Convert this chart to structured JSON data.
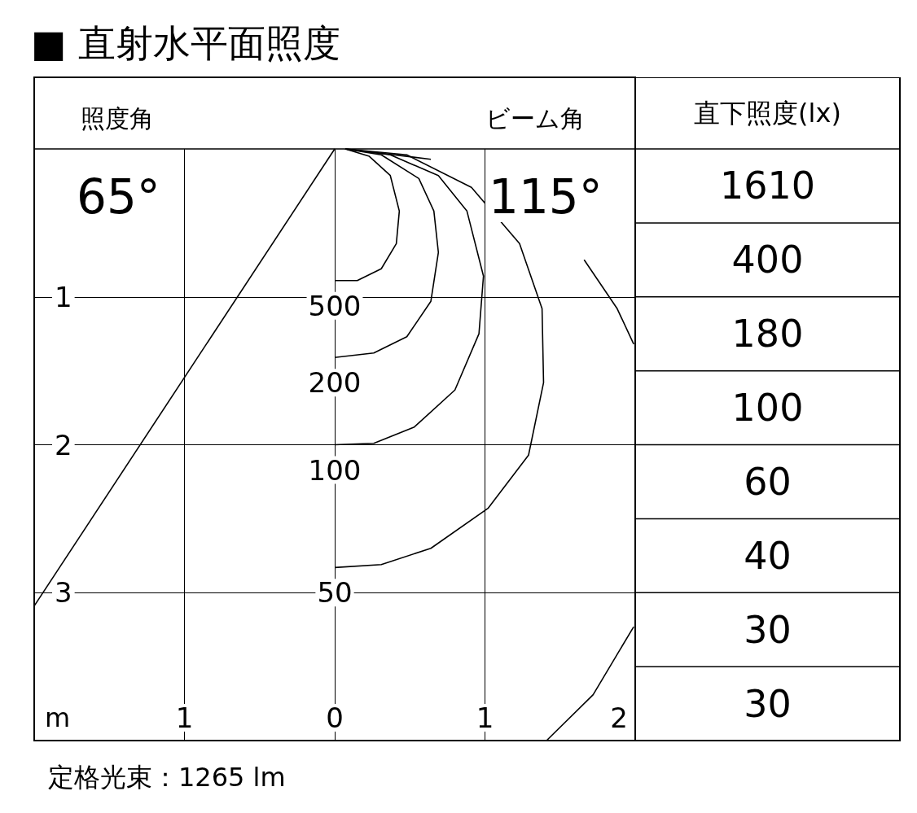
{
  "chart_data": [
    {
      "type": "line",
      "title": "■ 直射水平面照度",
      "xlabel": "m",
      "annotations": [
        "照度角",
        "65°",
        "ビーム角",
        "115°",
        "定格光束：1265 lm"
      ],
      "xlim": [
        -2,
        2
      ],
      "ylim": [
        4,
        0
      ],
      "xticks": [
        {
          "value": -1,
          "label": "1"
        },
        0,
        1,
        2
      ],
      "yticks": [
        1,
        2,
        3
      ],
      "grid": true,
      "legend": false,
      "marker": "none",
      "series": [
        {
          "name": "500",
          "color": "#000000",
          "x": [
            0.07,
            0.23,
            0.37,
            0.43,
            0.41,
            0.31,
            0.15,
            0.0
          ],
          "values": [
            0,
            0.05,
            0.18,
            0.42,
            0.64,
            0.81,
            0.89,
            0.89
          ]
        },
        {
          "name": "200",
          "color": "#000000",
          "x": [
            0.07,
            0.31,
            0.56,
            0.66,
            0.69,
            0.64,
            0.48,
            0.26,
            0.0
          ],
          "values": [
            0,
            0.04,
            0.2,
            0.42,
            0.7,
            1.03,
            1.27,
            1.38,
            1.41
          ]
        },
        {
          "name": "100",
          "color": "#000000",
          "x": [
            0.07,
            0.37,
            0.69,
            0.88,
            0.99,
            0.96,
            0.8,
            0.53,
            0.26,
            0.0
          ],
          "values": [
            0,
            0.04,
            0.18,
            0.42,
            0.86,
            1.25,
            1.63,
            1.88,
            1.99,
            2.0
          ]
        },
        {
          "name": "50",
          "color": "#000000",
          "x": [
            0.07,
            0.48,
            0.91,
            1.23,
            1.38,
            1.39,
            1.29,
            1.02,
            0.64,
            0.31,
            0.0
          ],
          "values": [
            0,
            0.04,
            0.26,
            0.64,
            1.08,
            1.58,
            2.07,
            2.43,
            2.7,
            2.81,
            2.83
          ]
        },
        {
          "color": "#000000",
          "x": [
            0.07,
            0.64,
            null,
            null,
            1.66,
            1.88,
            1.99,
            null,
            1.99,
            1.72,
            1.41
          ],
          "values": [
            0,
            0.07,
            null,
            null,
            0.75,
            1.08,
            1.32,
            null,
            3.23,
            3.69,
            4.0
          ]
        },
        {
          "color": "#000000",
          "x": [
            0,
            -2
          ],
          "values": [
            0,
            3.09
          ]
        }
      ]
    },
    {
      "type": "other",
      "title": "直下照度(lx)",
      "annotations": [
        "1610",
        "400",
        "180",
        "100",
        "60",
        "40",
        "30",
        "30"
      ]
    }
  ]
}
